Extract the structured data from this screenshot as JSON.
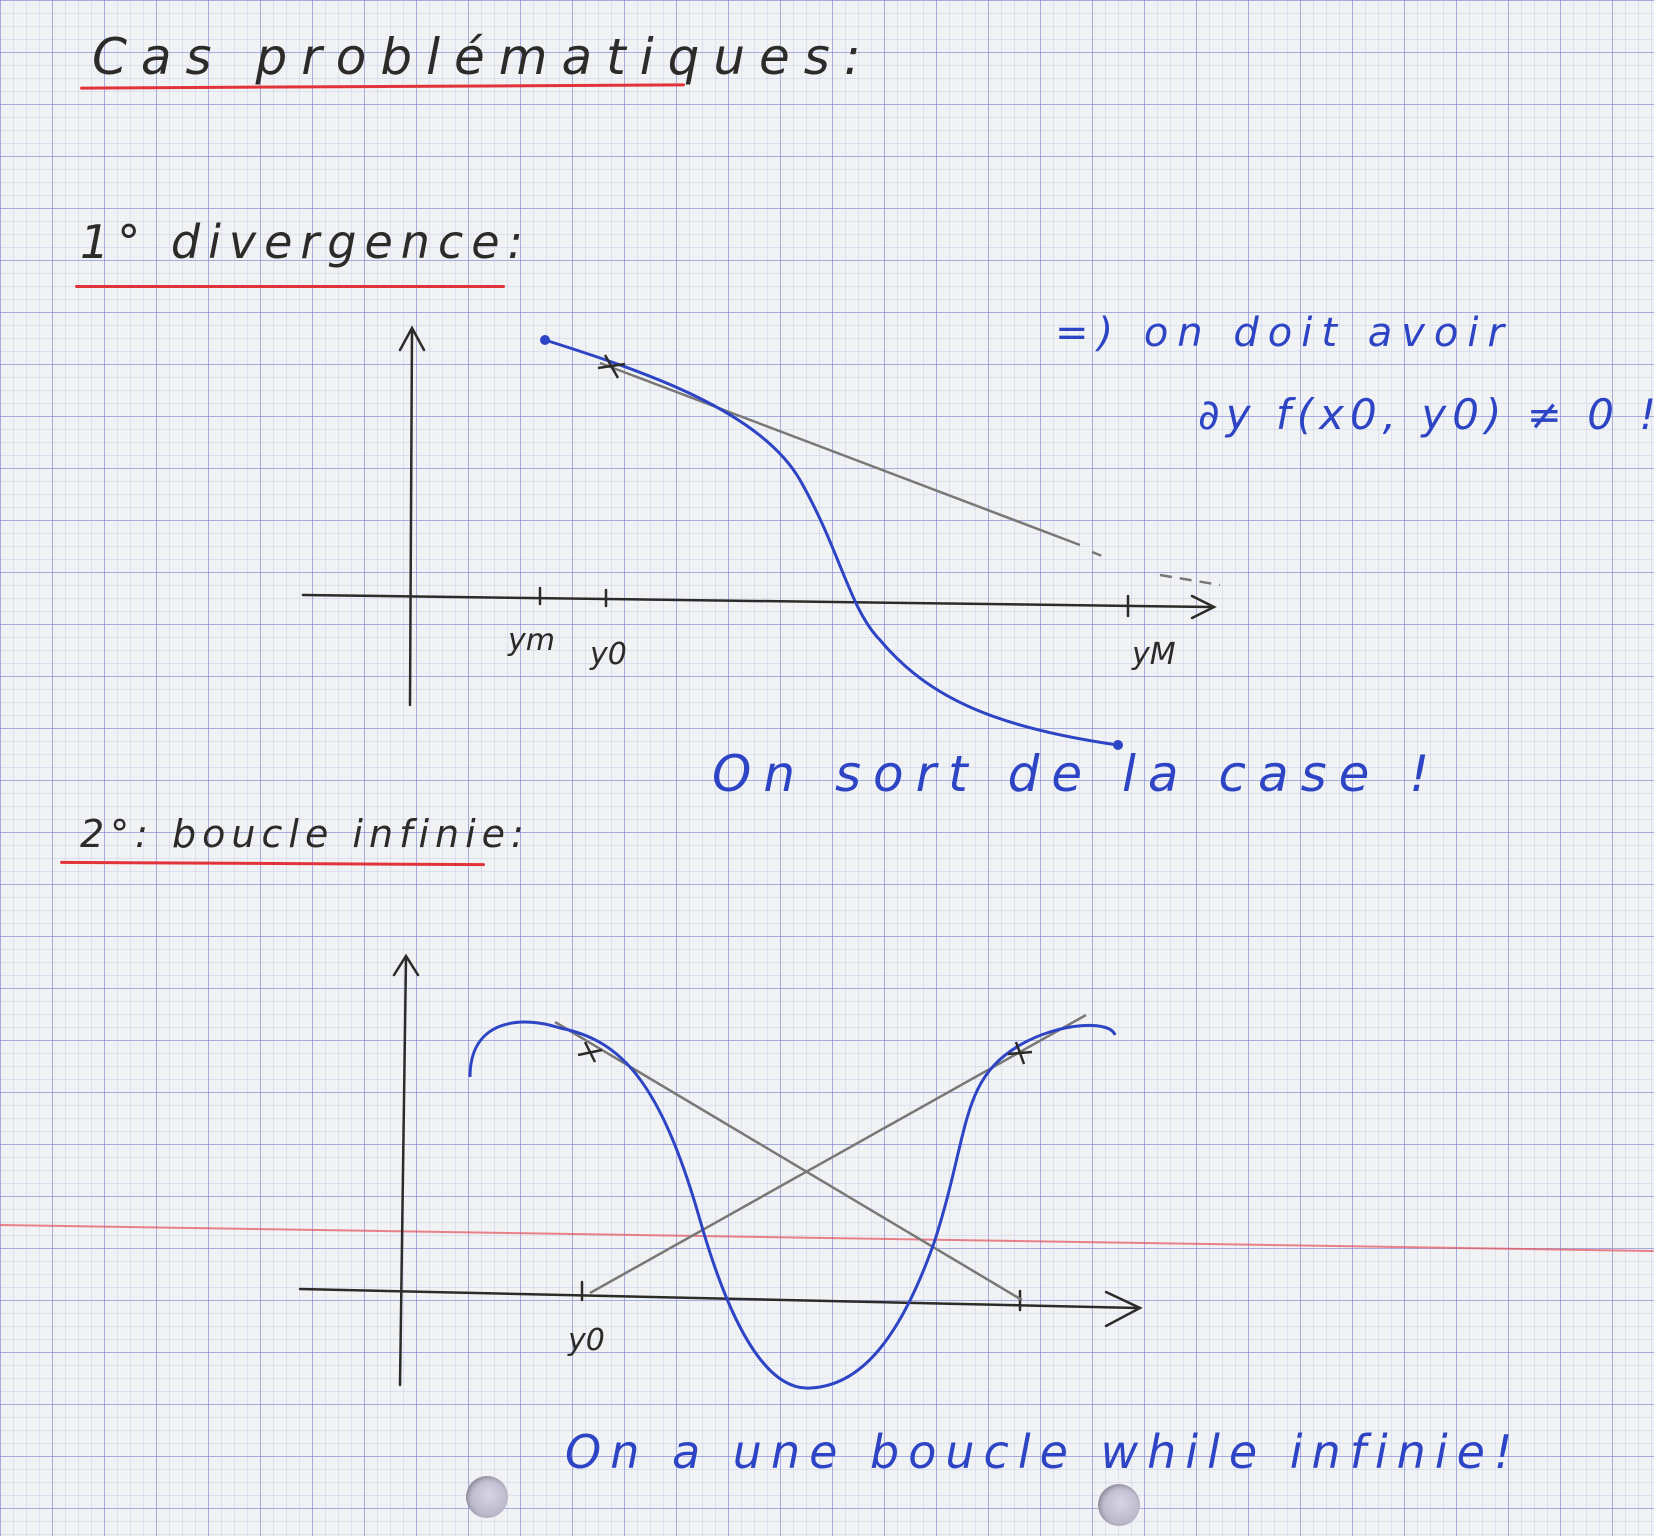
{
  "title": "Cas problématiques:",
  "section1": {
    "heading": "1° divergence:",
    "note_line1": "=) on doit avoir",
    "note_line2": "∂y f(x0, y0) ≠ 0 !!",
    "conclusion": "On sort de la case !",
    "tick_labels": [
      "ym",
      "y0",
      "yM"
    ]
  },
  "section2": {
    "heading": "2°: boucle infinie:",
    "conclusion": "On a une boucle while infinie!",
    "tick_labels": [
      "y0"
    ]
  },
  "colors": {
    "pencil": "#2d2b29",
    "ink": "#2d45c4",
    "underline": "#e2333b",
    "grid": "#7f87d2"
  }
}
